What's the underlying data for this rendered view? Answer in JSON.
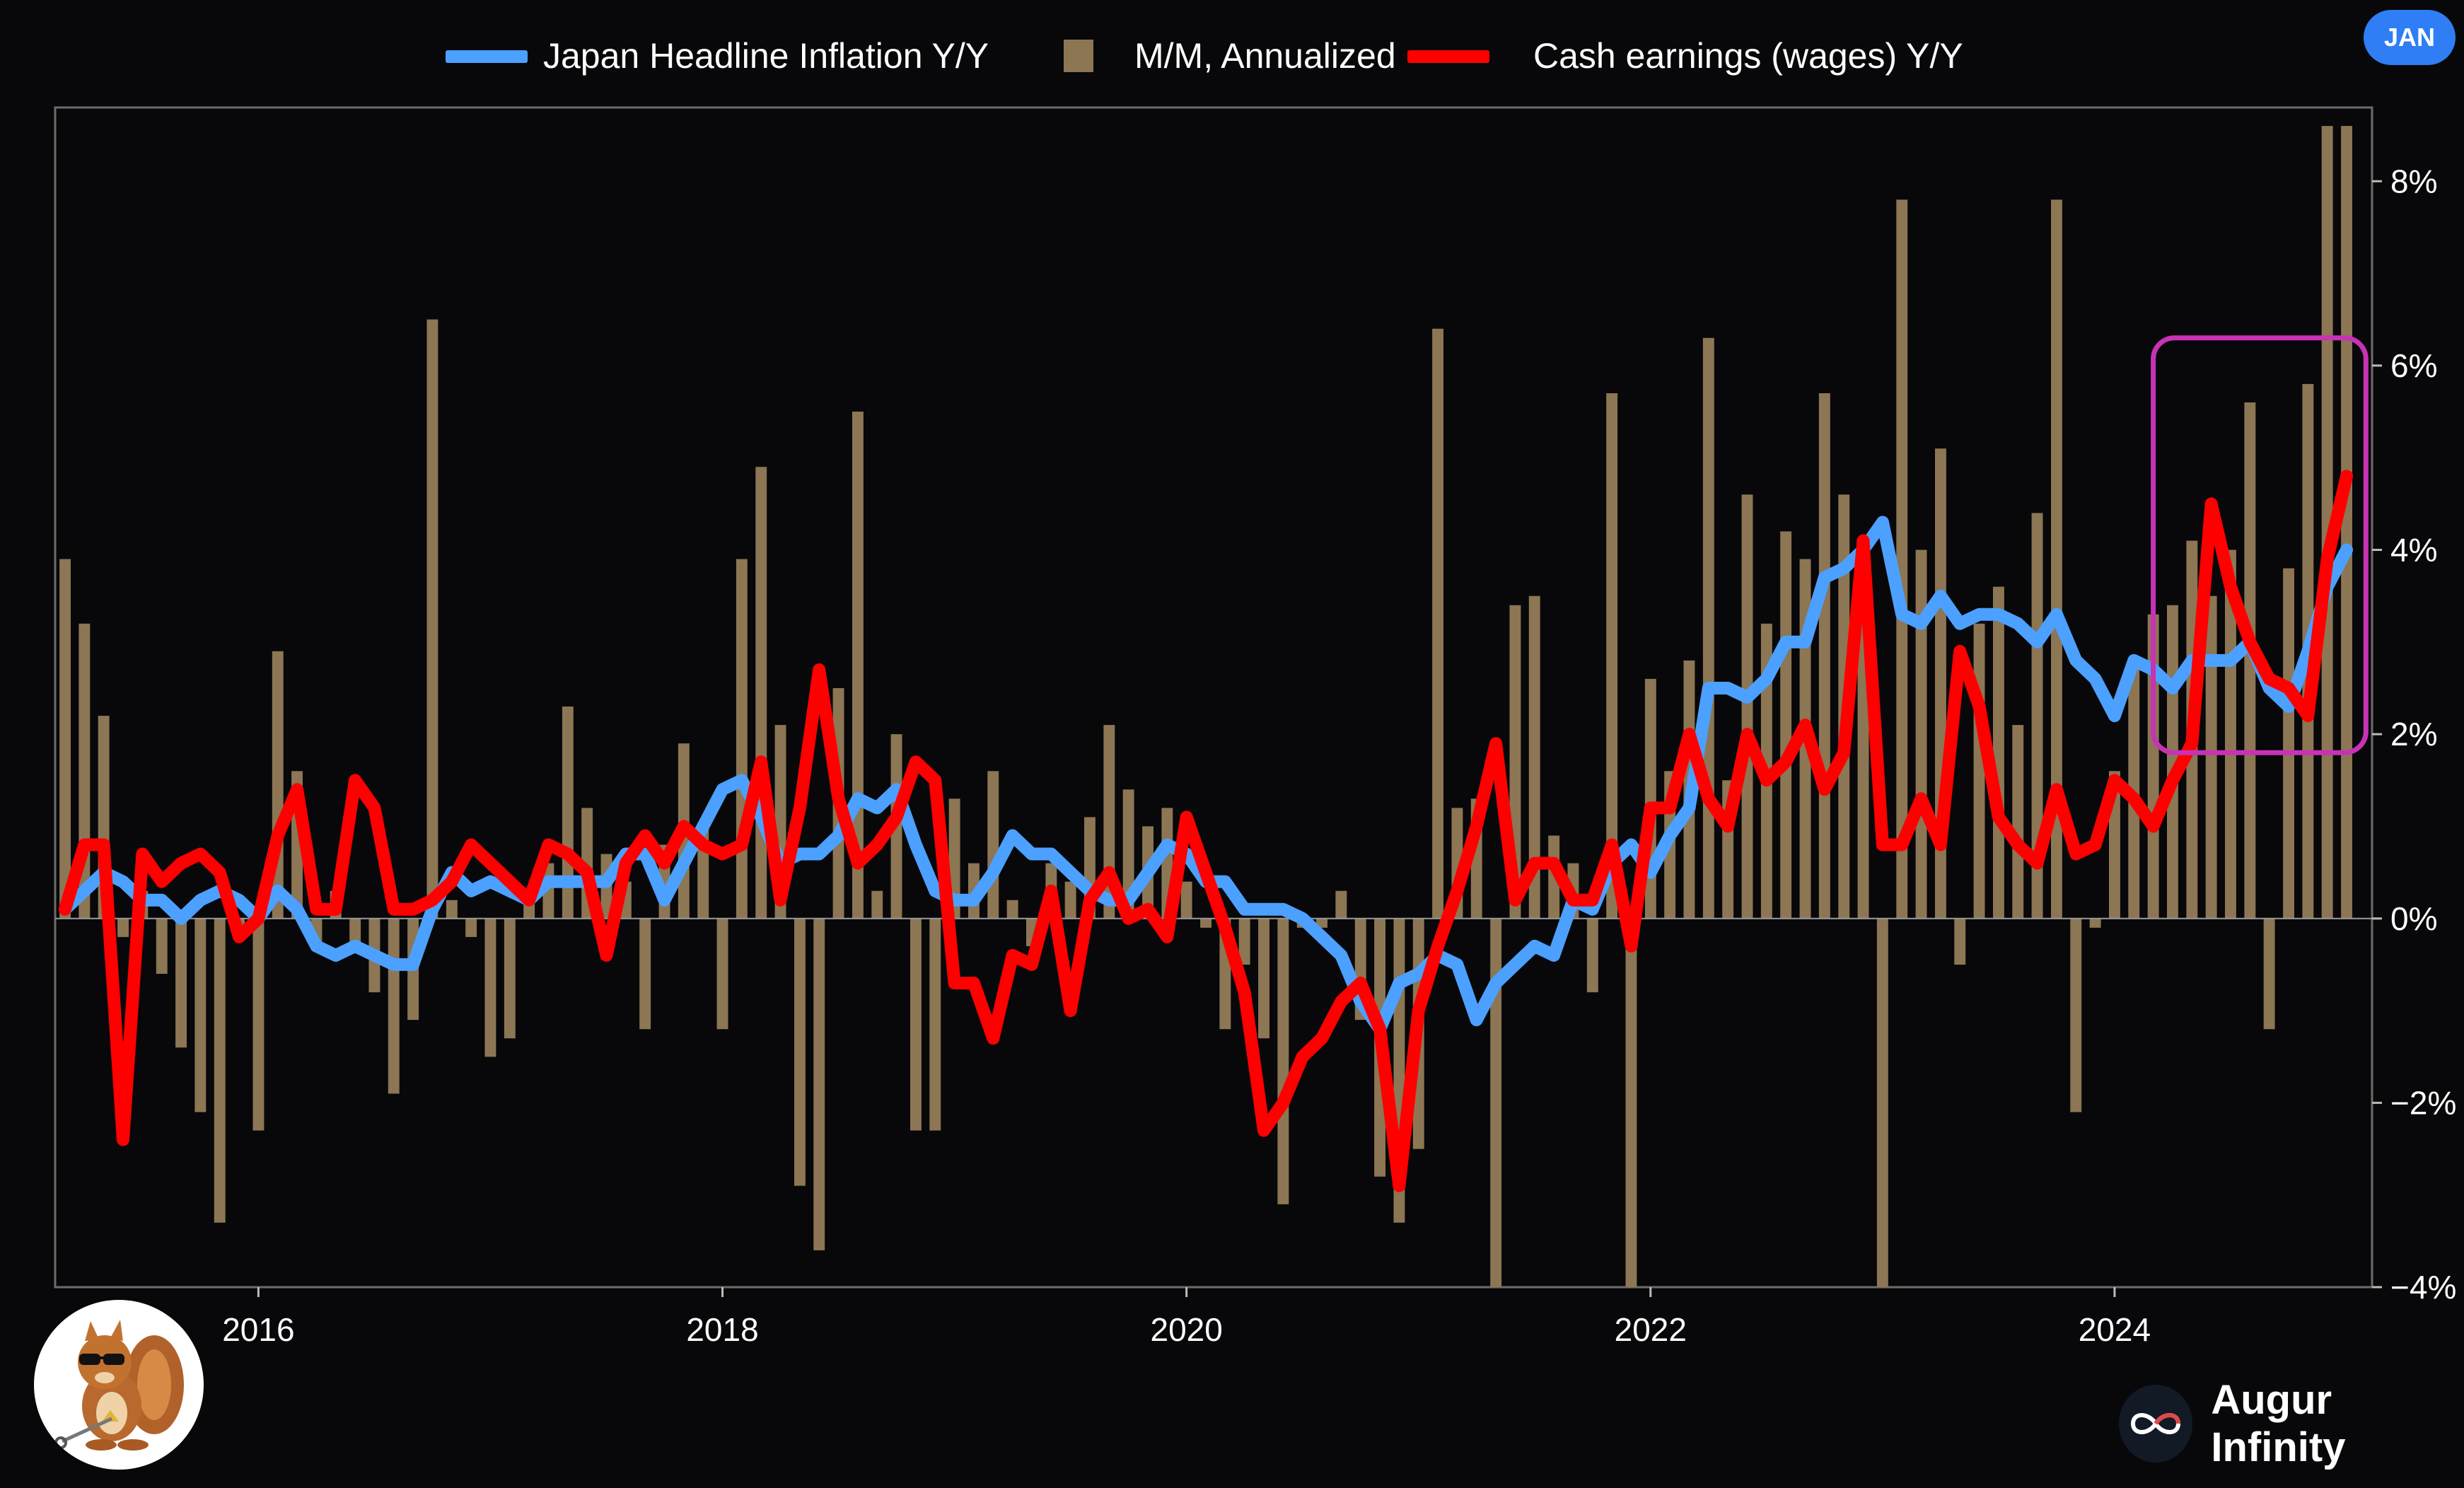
{
  "badge": "JAN",
  "brand": {
    "name": "Augur Infinity",
    "logo_icon": "infinity-icon"
  },
  "avatar_icon": "squirrel-mascot-icon",
  "chart_data": {
    "type": "bar+line",
    "legend": [
      {
        "label": "Japan Headline Inflation Y/Y",
        "color": "#4ca0ff",
        "kind": "line"
      },
      {
        "label": "M/M, Annualized",
        "color": "#8c7654",
        "kind": "bar"
      },
      {
        "label": "Cash earnings (wages) Y/Y",
        "color": "#ff0000",
        "kind": "line"
      }
    ],
    "legend_position": "top-center",
    "x_start": "2015-03",
    "x_end": "2025-01",
    "x_ticks": [
      {
        "label": "2016",
        "date": "2016-01"
      },
      {
        "label": "2018",
        "date": "2018-01"
      },
      {
        "label": "2020",
        "date": "2020-01"
      },
      {
        "label": "2022",
        "date": "2022-01"
      },
      {
        "label": "2024",
        "date": "2024-01"
      }
    ],
    "y_axis_side": "right",
    "ylim": [
      -4,
      8.8
    ],
    "y_ticks": [
      {
        "value": -4,
        "label": "−4%"
      },
      {
        "value": -2,
        "label": "−2%"
      },
      {
        "value": 0,
        "label": "0%"
      },
      {
        "value": 2,
        "label": "2%"
      },
      {
        "value": 4,
        "label": "4%"
      },
      {
        "value": 6,
        "label": "6%"
      },
      {
        "value": 8,
        "label": "8%"
      }
    ],
    "grid": false,
    "highlight_box": {
      "x_from": "2024-03",
      "x_to": "2025-02",
      "y_from": 1.8,
      "y_to": 6.3,
      "color": "#c832b4"
    },
    "months": [
      "2015-03",
      "2015-04",
      "2015-05",
      "2015-06",
      "2015-07",
      "2015-08",
      "2015-09",
      "2015-10",
      "2015-11",
      "2015-12",
      "2016-01",
      "2016-02",
      "2016-03",
      "2016-04",
      "2016-05",
      "2016-06",
      "2016-07",
      "2016-08",
      "2016-09",
      "2016-10",
      "2016-11",
      "2016-12",
      "2017-01",
      "2017-02",
      "2017-03",
      "2017-04",
      "2017-05",
      "2017-06",
      "2017-07",
      "2017-08",
      "2017-09",
      "2017-10",
      "2017-11",
      "2017-12",
      "2018-01",
      "2018-02",
      "2018-03",
      "2018-04",
      "2018-05",
      "2018-06",
      "2018-07",
      "2018-08",
      "2018-09",
      "2018-10",
      "2018-11",
      "2018-12",
      "2019-01",
      "2019-02",
      "2019-03",
      "2019-04",
      "2019-05",
      "2019-06",
      "2019-07",
      "2019-08",
      "2019-09",
      "2019-10",
      "2019-11",
      "2019-12",
      "2020-01",
      "2020-02",
      "2020-03",
      "2020-04",
      "2020-05",
      "2020-06",
      "2020-07",
      "2020-08",
      "2020-09",
      "2020-10",
      "2020-11",
      "2020-12",
      "2021-01",
      "2021-02",
      "2021-03",
      "2021-04",
      "2021-05",
      "2021-06",
      "2021-07",
      "2021-08",
      "2021-09",
      "2021-10",
      "2021-11",
      "2021-12",
      "2022-01",
      "2022-02",
      "2022-03",
      "2022-04",
      "2022-05",
      "2022-06",
      "2022-07",
      "2022-08",
      "2022-09",
      "2022-10",
      "2022-11",
      "2022-12",
      "2023-01",
      "2023-02",
      "2023-03",
      "2023-04",
      "2023-05",
      "2023-06",
      "2023-07",
      "2023-08",
      "2023-09",
      "2023-10",
      "2023-11",
      "2023-12",
      "2024-01",
      "2024-02",
      "2024-03",
      "2024-04",
      "2024-05",
      "2024-06",
      "2024-07",
      "2024-08",
      "2024-09",
      "2024-10",
      "2024-11",
      "2024-12",
      "2025-01"
    ],
    "series": [
      {
        "name": "Japan Headline Inflation Y/Y",
        "type": "line",
        "color": "#4ca0ff",
        "values": [
          0.1,
          0.3,
          0.5,
          0.4,
          0.2,
          0.2,
          0.0,
          0.2,
          0.3,
          0.2,
          0.0,
          0.3,
          0.1,
          -0.3,
          -0.4,
          -0.3,
          -0.4,
          -0.5,
          -0.5,
          0.1,
          0.5,
          0.3,
          0.4,
          0.3,
          0.2,
          0.4,
          0.4,
          0.4,
          0.4,
          0.7,
          0.7,
          0.2,
          0.6,
          1.0,
          1.4,
          1.5,
          1.1,
          0.6,
          0.7,
          0.7,
          0.9,
          1.3,
          1.2,
          1.4,
          0.8,
          0.3,
          0.2,
          0.2,
          0.5,
          0.9,
          0.7,
          0.7,
          0.5,
          0.3,
          0.2,
          0.2,
          0.5,
          0.8,
          0.7,
          0.4,
          0.4,
          0.1,
          0.1,
          0.1,
          0.0,
          -0.2,
          -0.4,
          -0.9,
          -1.2,
          -0.7,
          -0.6,
          -0.4,
          -0.5,
          -1.1,
          -0.7,
          -0.5,
          -0.3,
          -0.4,
          0.2,
          0.1,
          0.6,
          0.8,
          0.5,
          0.9,
          1.2,
          2.5,
          2.5,
          2.4,
          2.6,
          3.0,
          3.0,
          3.7,
          3.8,
          4.0,
          4.3,
          3.3,
          3.2,
          3.5,
          3.2,
          3.3,
          3.3,
          3.2,
          3.0,
          3.3,
          2.8,
          2.6,
          2.2,
          2.8,
          2.7,
          2.5,
          2.8,
          2.8,
          2.8,
          3.0,
          2.5,
          2.3,
          2.9,
          3.6,
          4.0
        ]
      },
      {
        "name": "M/M, Annualized",
        "type": "bar",
        "color": "#8c7654",
        "values": [
          3.9,
          3.2,
          2.2,
          -0.2,
          0.3,
          -0.6,
          -1.4,
          -2.1,
          -3.3,
          -0.2,
          -2.3,
          2.9,
          1.6,
          -0.3,
          0.3,
          -0.3,
          -0.8,
          -1.9,
          -1.1,
          6.5,
          0.2,
          -0.2,
          -1.5,
          -1.3,
          0.3,
          0.6,
          2.3,
          1.2,
          0.7,
          0.4,
          -1.2,
          0.8,
          1.9,
          1.0,
          -1.2,
          3.9,
          4.9,
          2.1,
          -2.9,
          -3.6,
          2.5,
          5.5,
          0.3,
          2.0,
          -2.3,
          -2.3,
          1.3,
          0.6,
          1.6,
          0.2,
          -0.3,
          0.6,
          0.4,
          1.1,
          2.1,
          1.4,
          1.0,
          1.2,
          0.4,
          -0.1,
          -1.2,
          -0.5,
          -1.3,
          -3.1,
          -0.1,
          -0.1,
          0.3,
          -1.1,
          -2.8,
          -3.3,
          -2.5,
          6.4,
          1.2,
          1.3,
          -4.0,
          3.4,
          3.5,
          0.9,
          0.6,
          -0.8,
          5.7,
          -4.0,
          2.6,
          1.6,
          2.8,
          6.3,
          1.5,
          4.6,
          3.2,
          4.2,
          3.9,
          5.7,
          4.6,
          3.4,
          -4.0,
          7.8,
          4.0,
          5.1,
          -0.5,
          3.2,
          3.6,
          2.1,
          4.4,
          7.8,
          -2.1,
          -0.1,
          1.6,
          2.8,
          3.3,
          3.4,
          4.1,
          3.5,
          4.0,
          5.6,
          -1.2,
          3.8,
          5.8,
          8.6,
          8.6
        ]
      },
      {
        "name": "Cash earnings (wages) Y/Y",
        "type": "line",
        "color": "#ff0000",
        "values": [
          0.1,
          0.8,
          0.8,
          -2.4,
          0.7,
          0.4,
          0.6,
          0.7,
          0.5,
          -0.2,
          0.0,
          0.9,
          1.4,
          0.1,
          0.1,
          1.5,
          1.2,
          0.1,
          0.1,
          0.2,
          0.4,
          0.8,
          0.6,
          0.4,
          0.2,
          0.8,
          0.7,
          0.5,
          -0.4,
          0.6,
          0.9,
          0.6,
          1.0,
          0.8,
          0.7,
          0.8,
          1.7,
          0.2,
          1.2,
          2.7,
          1.3,
          0.6,
          0.8,
          1.1,
          1.7,
          1.5,
          -0.7,
          -0.7,
          -1.3,
          -0.4,
          -0.5,
          0.3,
          -1.0,
          0.2,
          0.5,
          0.0,
          0.1,
          -0.2,
          1.1,
          0.5,
          -0.1,
          -0.8,
          -2.3,
          -2.0,
          -1.5,
          -1.3,
          -0.9,
          -0.7,
          -1.2,
          -2.9,
          -1.0,
          -0.3,
          0.3,
          1.0,
          1.9,
          0.2,
          0.6,
          0.6,
          0.2,
          0.2,
          0.8,
          -0.3,
          1.2,
          1.2,
          2.0,
          1.3,
          1.0,
          2.0,
          1.5,
          1.7,
          2.1,
          1.4,
          1.8,
          4.1,
          0.8,
          0.8,
          1.3,
          0.8,
          2.9,
          2.3,
          1.1,
          0.8,
          0.6,
          1.4,
          0.7,
          0.8,
          1.5,
          1.3,
          1.0,
          1.5,
          1.9,
          4.5,
          3.6,
          3.0,
          2.6,
          2.5,
          2.2,
          3.9,
          4.8
        ]
      }
    ]
  }
}
